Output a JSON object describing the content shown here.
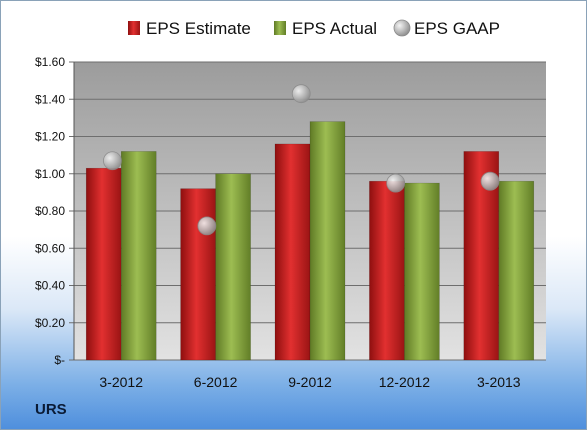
{
  "ticker": "URS",
  "chart_data": {
    "type": "bar",
    "categories": [
      "3-2012",
      "6-2012",
      "9-2012",
      "12-2012",
      "3-2013"
    ],
    "series": [
      {
        "name": "EPS Estimate",
        "kind": "bar",
        "color": "#cc1f1f",
        "values": [
          1.03,
          0.92,
          1.16,
          0.96,
          1.12
        ]
      },
      {
        "name": "EPS Actual",
        "kind": "bar",
        "color": "#86a53a",
        "values": [
          1.12,
          1.0,
          1.28,
          0.95,
          0.96
        ]
      },
      {
        "name": "EPS GAAP",
        "kind": "marker",
        "color": "#b9b9b9",
        "values": [
          1.07,
          0.72,
          1.43,
          0.95,
          0.96
        ]
      }
    ],
    "yticks": [
      0,
      0.2,
      0.4,
      0.6,
      0.8,
      1.0,
      1.2,
      1.4,
      1.6
    ],
    "ytick_labels": [
      "$-",
      "$0.20",
      "$0.40",
      "$0.60",
      "$0.80",
      "$1.00",
      "$1.20",
      "$1.40",
      "$1.60"
    ],
    "ylim": [
      0,
      1.6
    ],
    "grid": true,
    "legend_position": "top"
  }
}
